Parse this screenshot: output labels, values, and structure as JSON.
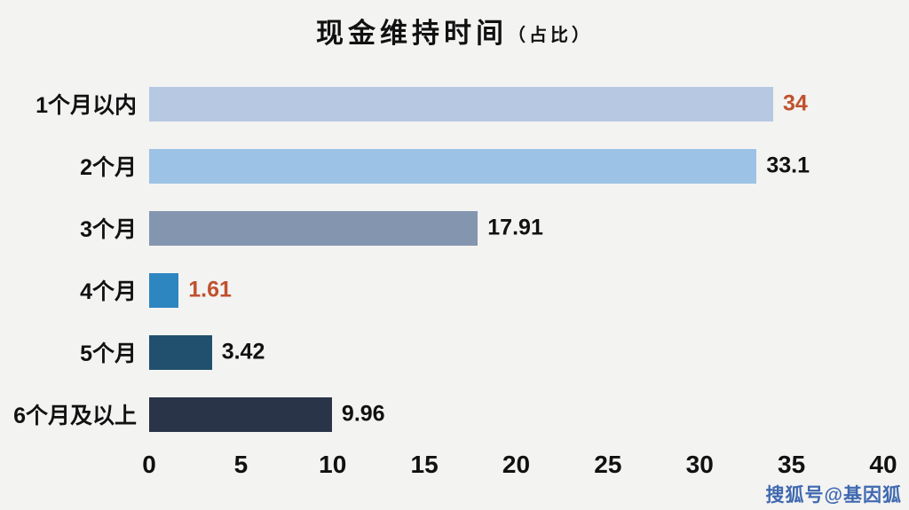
{
  "header": {
    "title": "现金维持时间",
    "subtitle": "（占比）"
  },
  "watermark": {
    "text": "搜狐号@基因狐",
    "color": "#3f69b0"
  },
  "chart_data": {
    "type": "bar",
    "orientation": "horizontal",
    "title": "现金维持时间（占比）",
    "categories": [
      "1个月以内",
      "2个月",
      "3个月",
      "4个月",
      "5个月",
      "6个月及以上"
    ],
    "values": [
      34,
      33.1,
      17.91,
      1.61,
      3.42,
      9.96
    ],
    "value_labels": [
      "34",
      "33.1",
      "17.91",
      "1.61",
      "3.42",
      "9.96"
    ],
    "bar_colors": [
      "#b6c8e2",
      "#9cc3e5",
      "#8496af",
      "#2e86c1",
      "#20506e",
      "#2a3449"
    ],
    "value_label_colors": [
      "#c0512e",
      "#111111",
      "#111111",
      "#c0512e",
      "#111111",
      "#111111"
    ],
    "xlabel": "",
    "ylabel": "",
    "xlim": [
      0,
      40
    ],
    "xticks": [
      0,
      5,
      10,
      15,
      20,
      25,
      30,
      35,
      40
    ],
    "grid": false,
    "legend": false
  }
}
